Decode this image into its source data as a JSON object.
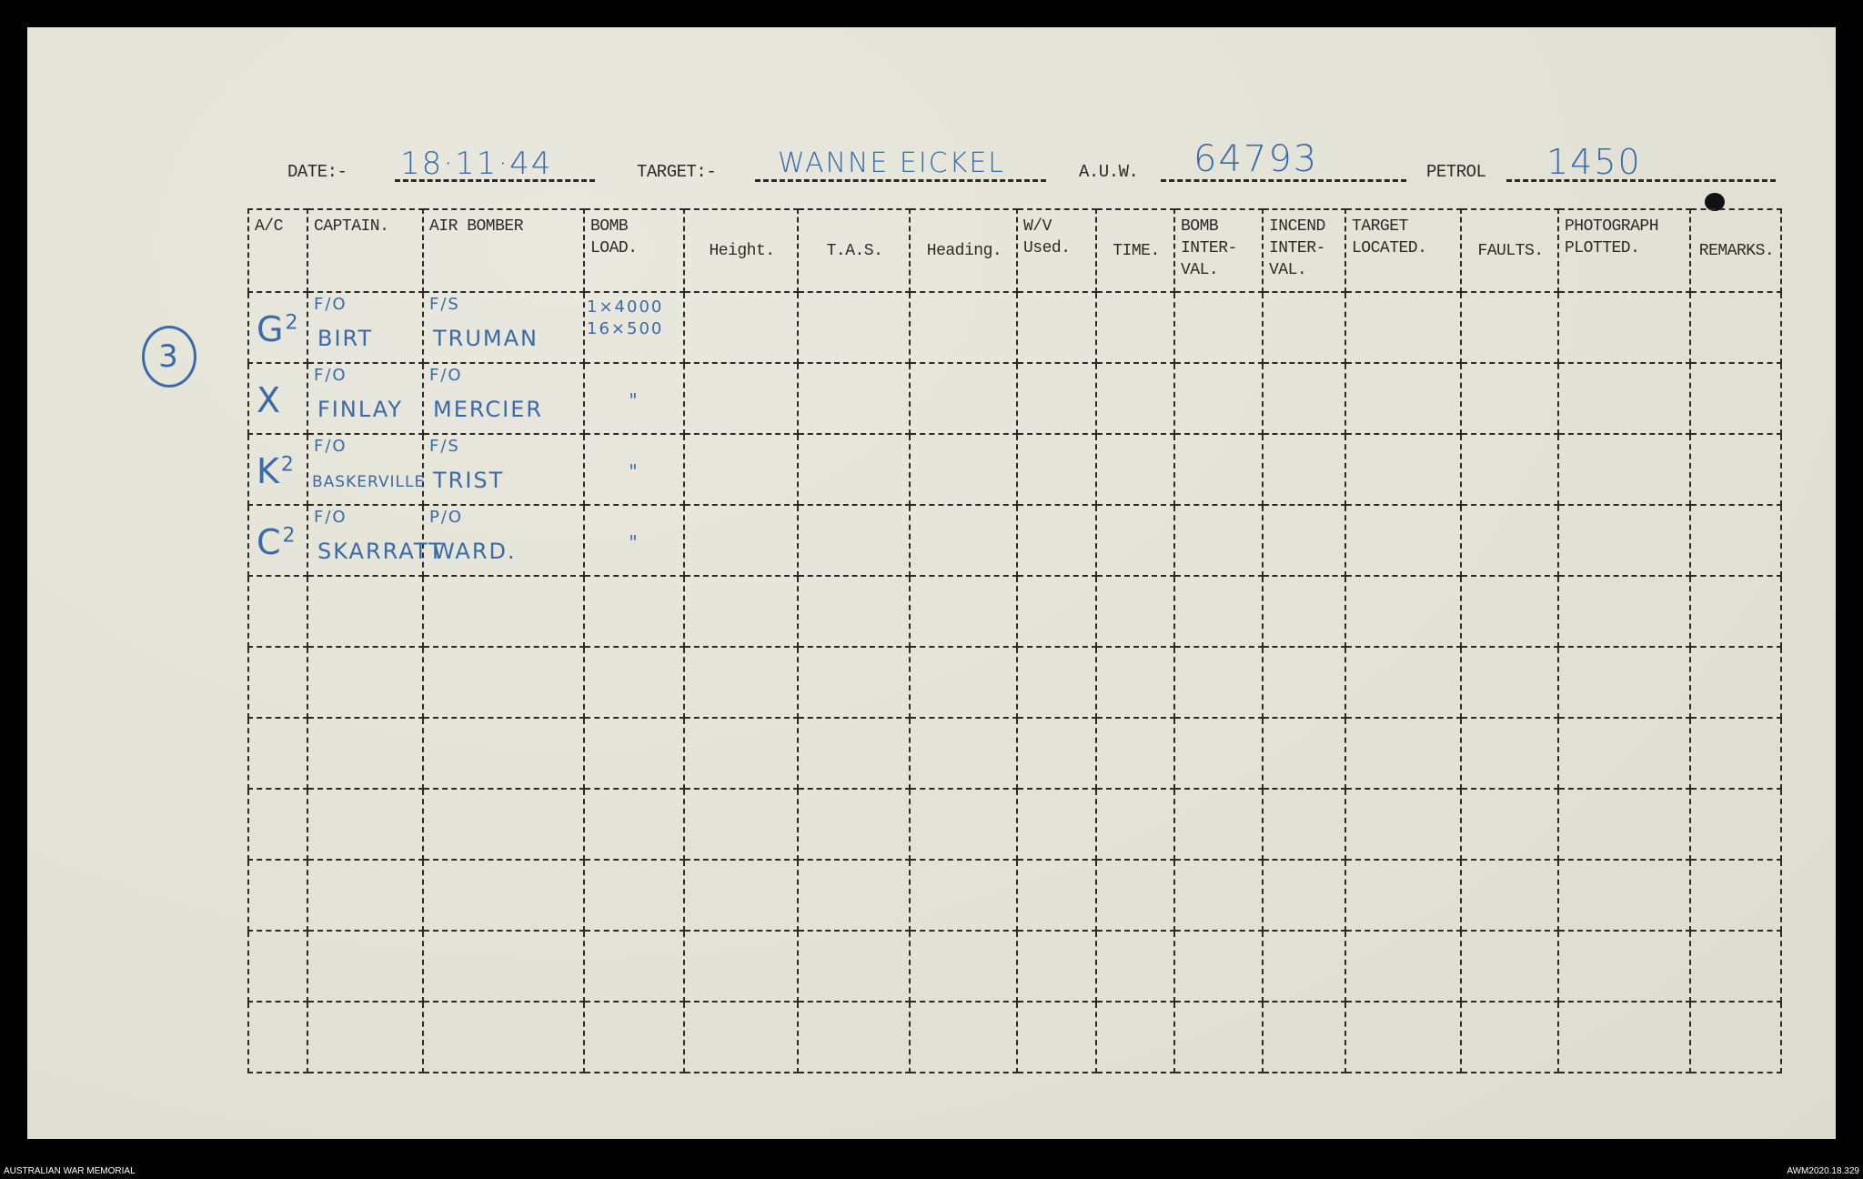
{
  "header": {
    "date_label": "DATE:-",
    "date_value": "18·11·44",
    "target_label": "TARGET:-",
    "target_value": "WANNE EICKEL",
    "auw_label": "A.U.W.",
    "auw_value": "64793",
    "petrol_label": "PETROL",
    "petrol_value": "1450"
  },
  "margin_note": "3",
  "columns": [
    "A/C",
    "CAPTAIN.",
    "AIR BOMBER",
    "BOMB LOAD.",
    "Height.",
    "T.A.S.",
    "Heading.",
    "W/V Used.",
    "TIME.",
    "BOMB INTER-VAL.",
    "INCEND INTER-VAL.",
    "TARGET LOCATED.",
    "FAULTS.",
    "PHOTOGRAPH PLOTTED.",
    "REMARKS."
  ],
  "rows": [
    {
      "ac": "G",
      "ac_sup": "2",
      "captain_rank": "F/O",
      "captain": "BIRT",
      "bomber_rank": "F/S",
      "bomber": "TRUMAN",
      "bomb_load": "1×4000 16×500"
    },
    {
      "ac": "X",
      "ac_sup": "",
      "captain_rank": "F/O",
      "captain": "FINLAY",
      "bomber_rank": "F/O",
      "bomber": "MERCIER",
      "bomb_load": "\""
    },
    {
      "ac": "K",
      "ac_sup": "2",
      "captain_rank": "F/O",
      "captain": "BASKERVILLE",
      "bomber_rank": "F/S",
      "bomber": "TRIST",
      "bomb_load": "\""
    },
    {
      "ac": "C",
      "ac_sup": "2",
      "captain_rank": "F/O",
      "captain": "SKARRATT",
      "bomber_rank": "P/O",
      "bomber": "WARD.",
      "bomb_load": "\""
    }
  ],
  "empty_rows": 7,
  "footer": {
    "left": "AUSTRALIAN WAR MEMORIAL",
    "right": "AWM2020.18.329"
  },
  "colors": {
    "ink_blue": "#3a6aa8",
    "typewriter": "#2b2a26",
    "paper": "#e4e3d8"
  }
}
